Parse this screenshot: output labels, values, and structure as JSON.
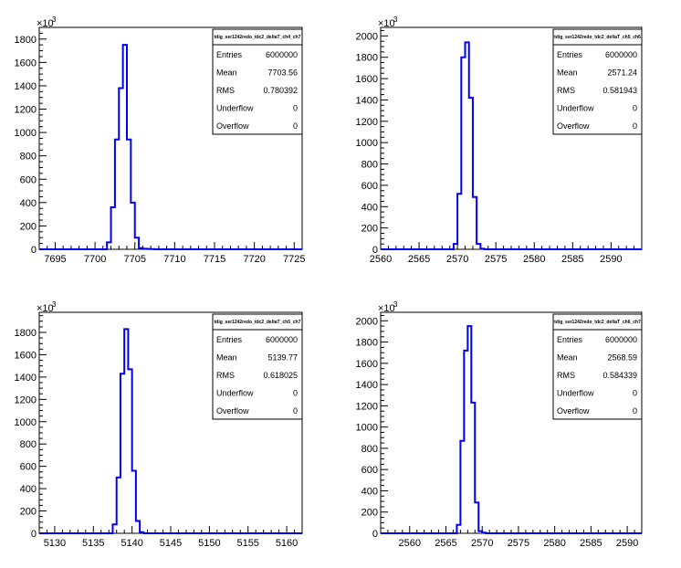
{
  "multiplier_base": "×10",
  "multiplier_exp": "3",
  "stat_labels": [
    "Entries",
    "Mean",
    "RMS",
    "Underflow",
    "Overflow"
  ],
  "chart_data": [
    {
      "type": "histogram",
      "stats_title": "tdig_ser1242redo_tdc2_deltaT_ch4_ch7",
      "stats": {
        "Entries": "6000000",
        "Mean": "7703.56",
        "RMS": "0.780392",
        "Underflow": "0",
        "Overflow": "0"
      },
      "xlim": [
        7693,
        7726
      ],
      "ylim": [
        0,
        1900
      ],
      "xticks": [
        7695,
        7700,
        7705,
        7710,
        7715,
        7720,
        7725
      ],
      "yticks": [
        0,
        200,
        400,
        600,
        800,
        1000,
        1200,
        1400,
        1600,
        1800
      ],
      "bin_width": 0.5,
      "bins": [
        [
          7701.5,
          60
        ],
        [
          7702,
          360
        ],
        [
          7702.5,
          940
        ],
        [
          7703,
          1380
        ],
        [
          7703.5,
          1750
        ],
        [
          7704,
          940
        ],
        [
          7704.5,
          400
        ],
        [
          7705,
          100
        ],
        [
          7705.5,
          10
        ],
        [
          7706,
          5
        ],
        [
          7706.5,
          3
        ],
        [
          7707,
          2
        ]
      ],
      "color": "#0000ee"
    },
    {
      "type": "histogram",
      "stats_title": "tdig_ser1242redo_tdc2_deltaT_ch5_ch6",
      "stats": {
        "Entries": "6000000",
        "Mean": "2571.24",
        "RMS": "0.581943",
        "Underflow": "0",
        "Overflow": "0"
      },
      "xlim": [
        2560,
        2594
      ],
      "ylim": [
        0,
        2080
      ],
      "xticks": [
        2560,
        2565,
        2570,
        2575,
        2580,
        2585,
        2590
      ],
      "yticks": [
        0,
        200,
        400,
        600,
        800,
        1000,
        1200,
        1400,
        1600,
        1800,
        2000
      ],
      "bin_width": 0.5,
      "bins": [
        [
          2569.5,
          50
        ],
        [
          2570,
          520
        ],
        [
          2570.5,
          1800
        ],
        [
          2571,
          1940
        ],
        [
          2571.5,
          1420
        ],
        [
          2572,
          490
        ],
        [
          2572.5,
          50
        ],
        [
          2573,
          5
        ]
      ],
      "color": "#0000ee"
    },
    {
      "type": "histogram",
      "stats_title": "tdig_ser1242redo_tdc2_deltaT_ch5_ch7",
      "stats": {
        "Entries": "6000000",
        "Mean": "5139.77",
        "RMS": "0.618025",
        "Underflow": "0",
        "Overflow": "0"
      },
      "xlim": [
        5128,
        5162
      ],
      "ylim": [
        0,
        1980
      ],
      "xticks": [
        5130,
        5135,
        5140,
        5145,
        5150,
        5155,
        5160
      ],
      "yticks": [
        0,
        200,
        400,
        600,
        800,
        1000,
        1200,
        1400,
        1600,
        1800
      ],
      "bin_width": 0.5,
      "bins": [
        [
          5137.5,
          80
        ],
        [
          5138,
          500
        ],
        [
          5138.5,
          1430
        ],
        [
          5139,
          1830
        ],
        [
          5139.5,
          1470
        ],
        [
          5140,
          560
        ],
        [
          5140.5,
          110
        ],
        [
          5141,
          10
        ]
      ],
      "color": "#0000ee"
    },
    {
      "type": "histogram",
      "stats_title": "tdig_ser1242redo_tdc2_deltaT_ch6_ch7",
      "stats": {
        "Entries": "6000000",
        "Mean": "2568.59",
        "RMS": "0.584339",
        "Underflow": "0",
        "Overflow": "0"
      },
      "xlim": [
        2556,
        2592
      ],
      "ylim": [
        0,
        2080
      ],
      "xticks": [
        2560,
        2565,
        2570,
        2575,
        2580,
        2585,
        2590
      ],
      "yticks": [
        0,
        200,
        400,
        600,
        800,
        1000,
        1200,
        1400,
        1600,
        1800,
        2000
      ],
      "bin_width": 0.5,
      "bins": [
        [
          2566.5,
          80
        ],
        [
          2567,
          870
        ],
        [
          2567.5,
          1720
        ],
        [
          2568,
          1950
        ],
        [
          2568.5,
          1230
        ],
        [
          2569,
          290
        ],
        [
          2569.5,
          20
        ],
        [
          2570,
          5
        ]
      ],
      "color": "#0000ee"
    }
  ]
}
